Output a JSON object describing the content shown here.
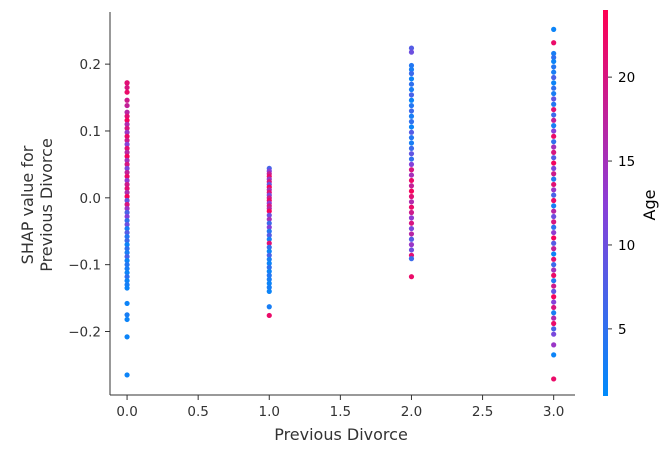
{
  "chart_data": {
    "type": "scatter",
    "xlabel": "Previous Divorce",
    "ylabel_lines": [
      "SHAP value for",
      "Previous Divorce"
    ],
    "x_ticks": [
      "0.0",
      "0.5",
      "1.0",
      "1.5",
      "2.0",
      "2.5",
      "3.0"
    ],
    "y_ticks": [
      "−0.2",
      "−0.1",
      "0.0",
      "0.1",
      "0.2"
    ],
    "xlim": [
      -0.12,
      3.15
    ],
    "ylim": [
      -0.295,
      0.278
    ],
    "colorbar": {
      "title": "Age",
      "ticks": [
        "5",
        "10",
        "15",
        "20"
      ],
      "range": [
        1,
        24
      ],
      "low_color": "#008bfb",
      "high_color": "#ff0052"
    },
    "grid": false,
    "series": [
      {
        "x": 0,
        "points": [
          [
            0.172,
            22
          ],
          [
            0.172,
            21
          ],
          [
            0.165,
            20
          ],
          [
            0.158,
            22
          ],
          [
            0.146,
            19
          ],
          [
            0.138,
            18
          ],
          [
            0.128,
            17
          ],
          [
            0.122,
            21
          ],
          [
            0.116,
            23
          ],
          [
            0.11,
            16
          ],
          [
            0.104,
            20
          ],
          [
            0.098,
            14
          ],
          [
            0.092,
            22
          ],
          [
            0.086,
            19
          ],
          [
            0.08,
            12
          ],
          [
            0.074,
            21
          ],
          [
            0.068,
            17
          ],
          [
            0.062,
            23
          ],
          [
            0.056,
            15
          ],
          [
            0.05,
            20
          ],
          [
            0.044,
            11
          ],
          [
            0.038,
            18
          ],
          [
            0.032,
            22
          ],
          [
            0.026,
            13
          ],
          [
            0.02,
            19
          ],
          [
            0.014,
            21
          ],
          [
            0.008,
            16
          ],
          [
            0.002,
            23
          ],
          [
            -0.004,
            9
          ],
          [
            -0.01,
            20
          ],
          [
            -0.016,
            14
          ],
          [
            -0.022,
            7
          ],
          [
            -0.028,
            12
          ],
          [
            -0.034,
            5
          ],
          [
            -0.04,
            10
          ],
          [
            -0.046,
            3
          ],
          [
            -0.052,
            8
          ],
          [
            -0.058,
            4
          ],
          [
            -0.064,
            6
          ],
          [
            -0.07,
            2
          ],
          [
            -0.076,
            5
          ],
          [
            -0.082,
            3
          ],
          [
            -0.088,
            7
          ],
          [
            -0.094,
            2
          ],
          [
            -0.1,
            4
          ],
          [
            -0.106,
            3
          ],
          [
            -0.112,
            2
          ],
          [
            -0.118,
            5
          ],
          [
            -0.124,
            2
          ],
          [
            -0.13,
            3
          ],
          [
            -0.135,
            2
          ],
          [
            -0.158,
            2
          ],
          [
            -0.175,
            3
          ],
          [
            -0.182,
            2
          ],
          [
            -0.208,
            2
          ],
          [
            -0.265,
            2
          ]
        ]
      },
      {
        "x": 1,
        "points": [
          [
            0.044,
            7
          ],
          [
            0.04,
            12
          ],
          [
            0.036,
            18
          ],
          [
            0.032,
            22
          ],
          [
            0.028,
            14
          ],
          [
            0.024,
            20
          ],
          [
            0.02,
            9
          ],
          [
            0.016,
            23
          ],
          [
            0.012,
            16
          ],
          [
            0.008,
            21
          ],
          [
            0.004,
            11
          ],
          [
            0.0,
            19
          ],
          [
            -0.004,
            22
          ],
          [
            -0.008,
            13
          ],
          [
            -0.012,
            20
          ],
          [
            -0.016,
            17
          ],
          [
            -0.02,
            23
          ],
          [
            -0.026,
            10
          ],
          [
            -0.032,
            15
          ],
          [
            -0.038,
            6
          ],
          [
            -0.044,
            12
          ],
          [
            -0.05,
            4
          ],
          [
            -0.056,
            8
          ],
          [
            -0.062,
            3
          ],
          [
            -0.068,
            21
          ],
          [
            -0.074,
            5
          ],
          [
            -0.08,
            2
          ],
          [
            -0.086,
            7
          ],
          [
            -0.092,
            3
          ],
          [
            -0.098,
            2
          ],
          [
            -0.104,
            5
          ],
          [
            -0.11,
            2
          ],
          [
            -0.116,
            4
          ],
          [
            -0.122,
            3
          ],
          [
            -0.128,
            2
          ],
          [
            -0.134,
            3
          ],
          [
            -0.14,
            2
          ],
          [
            -0.163,
            3
          ],
          [
            -0.176,
            22
          ]
        ]
      },
      {
        "x": 2,
        "points": [
          [
            0.224,
            8
          ],
          [
            0.218,
            10
          ],
          [
            0.198,
            4
          ],
          [
            0.192,
            3
          ],
          [
            0.186,
            6
          ],
          [
            0.178,
            2
          ],
          [
            0.17,
            5
          ],
          [
            0.162,
            3
          ],
          [
            0.154,
            7
          ],
          [
            0.146,
            2
          ],
          [
            0.138,
            4
          ],
          [
            0.13,
            6
          ],
          [
            0.122,
            3
          ],
          [
            0.114,
            5
          ],
          [
            0.106,
            2
          ],
          [
            0.098,
            8
          ],
          [
            0.09,
            4
          ],
          [
            0.082,
            3
          ],
          [
            0.074,
            6
          ],
          [
            0.066,
            9
          ],
          [
            0.058,
            5
          ],
          [
            0.05,
            12
          ],
          [
            0.042,
            20
          ],
          [
            0.034,
            15
          ],
          [
            0.026,
            22
          ],
          [
            0.018,
            18
          ],
          [
            0.01,
            23
          ],
          [
            0.002,
            21
          ],
          [
            -0.006,
            16
          ],
          [
            -0.014,
            22
          ],
          [
            -0.022,
            19
          ],
          [
            -0.03,
            13
          ],
          [
            -0.038,
            20
          ],
          [
            -0.046,
            11
          ],
          [
            -0.054,
            17
          ],
          [
            -0.062,
            8
          ],
          [
            -0.07,
            14
          ],
          [
            -0.078,
            10
          ],
          [
            -0.086,
            21
          ],
          [
            -0.091,
            6
          ],
          [
            -0.118,
            22
          ]
        ]
      },
      {
        "x": 3,
        "points": [
          [
            0.252,
            2
          ],
          [
            0.232,
            22
          ],
          [
            0.216,
            3
          ],
          [
            0.21,
            5
          ],
          [
            0.204,
            2
          ],
          [
            0.196,
            4
          ],
          [
            0.188,
            3
          ],
          [
            0.18,
            7
          ],
          [
            0.172,
            2
          ],
          [
            0.164,
            5
          ],
          [
            0.156,
            3
          ],
          [
            0.148,
            9
          ],
          [
            0.14,
            4
          ],
          [
            0.132,
            21
          ],
          [
            0.124,
            6
          ],
          [
            0.116,
            18
          ],
          [
            0.108,
            3
          ],
          [
            0.1,
            12
          ],
          [
            0.092,
            22
          ],
          [
            0.084,
            5
          ],
          [
            0.076,
            15
          ],
          [
            0.068,
            20
          ],
          [
            0.06,
            8
          ],
          [
            0.052,
            23
          ],
          [
            0.044,
            11
          ],
          [
            0.036,
            19
          ],
          [
            0.028,
            4
          ],
          [
            0.02,
            21
          ],
          [
            0.012,
            14
          ],
          [
            0.004,
            7
          ],
          [
            -0.004,
            22
          ],
          [
            -0.012,
            3
          ],
          [
            -0.02,
            17
          ],
          [
            -0.028,
            10
          ],
          [
            -0.036,
            20
          ],
          [
            -0.044,
            5
          ],
          [
            -0.052,
            13
          ],
          [
            -0.06,
            23
          ],
          [
            -0.068,
            8
          ],
          [
            -0.076,
            18
          ],
          [
            -0.084,
            2
          ],
          [
            -0.092,
            21
          ],
          [
            -0.1,
            6
          ],
          [
            -0.108,
            15
          ],
          [
            -0.116,
            22
          ],
          [
            -0.124,
            4
          ],
          [
            -0.132,
            19
          ],
          [
            -0.14,
            9
          ],
          [
            -0.148,
            23
          ],
          [
            -0.156,
            12
          ],
          [
            -0.164,
            20
          ],
          [
            -0.172,
            3
          ],
          [
            -0.18,
            16
          ],
          [
            -0.188,
            22
          ],
          [
            -0.196,
            7
          ],
          [
            -0.204,
            11
          ],
          [
            -0.22,
            14
          ],
          [
            -0.235,
            2
          ],
          [
            -0.271,
            22
          ]
        ]
      }
    ]
  }
}
